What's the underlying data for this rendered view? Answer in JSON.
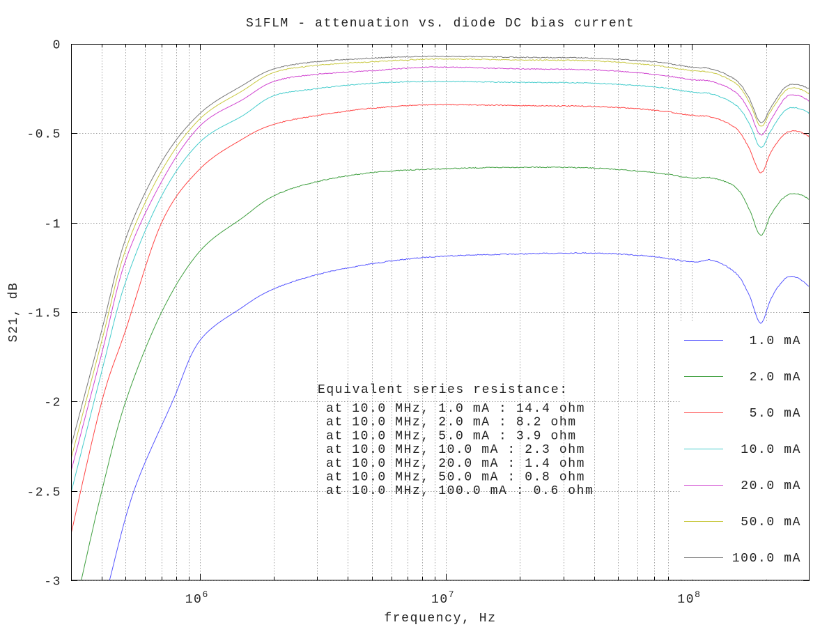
{
  "chart_data": {
    "type": "line",
    "title": "S1FLM - attenuation vs. diode DC bias current",
    "xlabel": "frequency, Hz",
    "ylabel": "S21, dB",
    "xscale": "log",
    "xlim": [
      300000,
      300000000
    ],
    "ylim": [
      -3,
      0
    ],
    "grid": true,
    "legend_position": "bottom-right",
    "x_ticks": [
      {
        "value": 1000000,
        "base": "10",
        "exp": "6"
      },
      {
        "value": 10000000,
        "base": "10",
        "exp": "7"
      },
      {
        "value": 100000000,
        "base": "10",
        "exp": "8"
      }
    ],
    "y_ticks": [
      {
        "value": 0,
        "label": "0"
      },
      {
        "value": -0.5,
        "label": "-0.5"
      },
      {
        "value": -1,
        "label": "-1"
      },
      {
        "value": -1.5,
        "label": "-1.5"
      },
      {
        "value": -2,
        "label": "-2"
      },
      {
        "value": -2.5,
        "label": "-2.5"
      },
      {
        "value": -3,
        "label": "-3"
      }
    ],
    "annotation": {
      "heading": "Equivalent series resistance:",
      "lines": [
        "at 10.0 MHz, 1.0 mA : 14.4 ohm",
        "at 10.0 MHz, 2.0 mA : 8.2 ohm",
        "at 10.0 MHz, 5.0 mA : 3.9 ohm",
        "at 10.0 MHz, 10.0 mA : 2.3 ohm",
        "at 10.0 MHz, 20.0 mA : 1.4 ohm",
        "at 10.0 MHz, 50.0 mA : 0.8 ohm",
        "at 10.0 MHz, 100.0 mA : 0.6 ohm"
      ]
    },
    "series": [
      {
        "name": "1.0 mA",
        "color": "#5555ff",
        "x": [
          430000,
          540000,
          775000,
          1000000,
          1500000,
          2000000,
          3000000,
          5000000,
          9000000,
          20000000,
          40000000,
          70000000,
          100000000,
          120000000,
          150000000,
          170000000,
          190000000,
          210000000,
          240000000,
          270000000,
          300000000
        ],
        "y": [
          -3.0,
          -2.5,
          -2.0,
          -1.66,
          -1.47,
          -1.37,
          -1.29,
          -1.23,
          -1.19,
          -1.175,
          -1.17,
          -1.19,
          -1.22,
          -1.21,
          -1.28,
          -1.4,
          -1.56,
          -1.42,
          -1.31,
          -1.31,
          -1.36
        ]
      },
      {
        "name": "2.0 mA",
        "color": "#3f9f3f",
        "x": [
          330000,
          400000,
          500000,
          700000,
          1000000,
          1500000,
          2000000,
          3000000,
          5000000,
          9000000,
          20000000,
          40000000,
          70000000,
          100000000,
          120000000,
          150000000,
          170000000,
          190000000,
          210000000,
          240000000,
          270000000,
          300000000
        ],
        "y": [
          -3.0,
          -2.5,
          -2.0,
          -1.5,
          -1.16,
          -0.97,
          -0.85,
          -0.77,
          -0.72,
          -0.7,
          -0.69,
          -0.695,
          -0.72,
          -0.75,
          -0.75,
          -0.8,
          -0.92,
          -1.07,
          -0.95,
          -0.85,
          -0.84,
          -0.87
        ]
      },
      {
        "name": "5.0 mA",
        "color": "#ff4444",
        "x": [
          300000,
          400000,
          500000,
          700000,
          1000000,
          1500000,
          2000000,
          3000000,
          5000000,
          9000000,
          20000000,
          40000000,
          70000000,
          100000000,
          120000000,
          150000000,
          170000000,
          190000000,
          210000000,
          240000000,
          270000000,
          300000000
        ],
        "y": [
          -2.74,
          -2.0,
          -1.6,
          -1.0,
          -0.7,
          -0.53,
          -0.45,
          -0.4,
          -0.36,
          -0.34,
          -0.345,
          -0.35,
          -0.37,
          -0.4,
          -0.41,
          -0.47,
          -0.58,
          -0.72,
          -0.6,
          -0.5,
          -0.49,
          -0.52
        ]
      },
      {
        "name": "10.0 mA",
        "color": "#44cccc",
        "x": [
          300000,
          400000,
          500000,
          700000,
          1000000,
          1500000,
          2000000,
          3000000,
          5000000,
          9000000,
          20000000,
          40000000,
          70000000,
          100000000,
          120000000,
          150000000,
          170000000,
          190000000,
          210000000,
          240000000,
          270000000,
          300000000
        ],
        "y": [
          -2.51,
          -1.83,
          -1.33,
          -0.85,
          -0.55,
          -0.4,
          -0.29,
          -0.25,
          -0.22,
          -0.21,
          -0.215,
          -0.22,
          -0.24,
          -0.27,
          -0.28,
          -0.34,
          -0.44,
          -0.58,
          -0.48,
          -0.37,
          -0.36,
          -0.39
        ]
      },
      {
        "name": "20.0 mA",
        "color": "#d044d0",
        "x": [
          300000,
          400000,
          500000,
          700000,
          1000000,
          1500000,
          2000000,
          3000000,
          5000000,
          9000000,
          20000000,
          40000000,
          70000000,
          100000000,
          120000000,
          150000000,
          170000000,
          190000000,
          210000000,
          240000000,
          270000000,
          300000000
        ],
        "y": [
          -2.39,
          -1.73,
          -1.21,
          -0.77,
          -0.46,
          -0.31,
          -0.21,
          -0.17,
          -0.15,
          -0.13,
          -0.14,
          -0.145,
          -0.17,
          -0.2,
          -0.21,
          -0.27,
          -0.37,
          -0.51,
          -0.42,
          -0.3,
          -0.29,
          -0.32
        ]
      },
      {
        "name": "50.0 mA",
        "color": "#c8c840",
        "x": [
          300000,
          400000,
          500000,
          700000,
          1000000,
          1500000,
          2000000,
          3000000,
          5000000,
          9000000,
          20000000,
          40000000,
          70000000,
          100000000,
          120000000,
          150000000,
          170000000,
          190000000,
          210000000,
          240000000,
          270000000,
          300000000
        ],
        "y": [
          -2.32,
          -1.66,
          -1.15,
          -0.71,
          -0.42,
          -0.26,
          -0.16,
          -0.12,
          -0.1,
          -0.085,
          -0.09,
          -0.095,
          -0.12,
          -0.15,
          -0.16,
          -0.22,
          -0.32,
          -0.46,
          -0.37,
          -0.26,
          -0.25,
          -0.28
        ]
      },
      {
        "name": "100.0 mA",
        "color": "#777777",
        "x": [
          300000,
          400000,
          500000,
          700000,
          1000000,
          1500000,
          2000000,
          3000000,
          5000000,
          9000000,
          20000000,
          40000000,
          70000000,
          100000000,
          120000000,
          150000000,
          170000000,
          190000000,
          210000000,
          240000000,
          270000000,
          300000000
        ],
        "y": [
          -2.25,
          -1.6,
          -1.09,
          -0.66,
          -0.39,
          -0.23,
          -0.14,
          -0.1,
          -0.08,
          -0.07,
          -0.075,
          -0.08,
          -0.1,
          -0.13,
          -0.14,
          -0.2,
          -0.3,
          -0.44,
          -0.35,
          -0.24,
          -0.23,
          -0.25
        ]
      }
    ]
  }
}
